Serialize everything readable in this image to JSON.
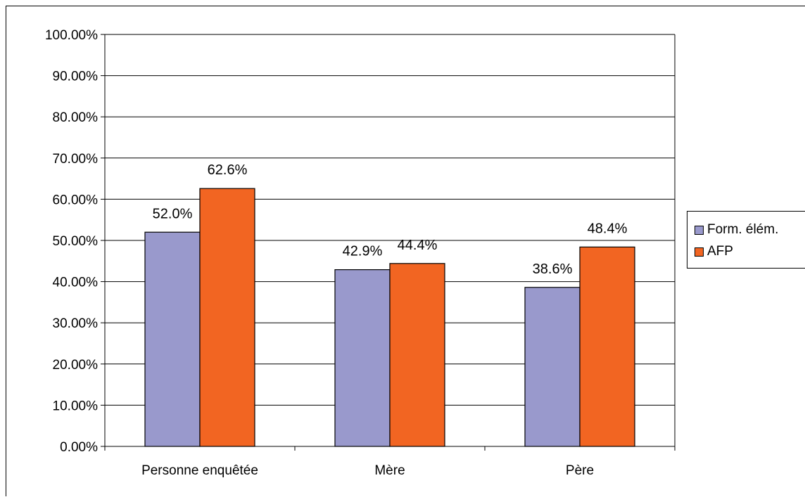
{
  "chart_data": {
    "type": "bar",
    "categories": [
      "Personne enquêtée",
      "Mère",
      "Père"
    ],
    "series": [
      {
        "name": "Form. élém.",
        "values": [
          52.0,
          42.9,
          38.6
        ],
        "color": "#9999CC",
        "labels": [
          "52.0%",
          "42.9%",
          "38.6%"
        ]
      },
      {
        "name": "AFP",
        "values": [
          62.6,
          44.4,
          48.4
        ],
        "color": "#F26522",
        "labels": [
          "62.6%",
          "44.4%",
          "48.4%"
        ]
      }
    ],
    "yticks": [
      "0.00%",
      "10.00%",
      "20.00%",
      "30.00%",
      "40.00%",
      "50.00%",
      "60.00%",
      "70.00%",
      "80.00%",
      "90.00%",
      "100.00%"
    ],
    "ylim": [
      0,
      100
    ],
    "grid": true,
    "legend_position": "right",
    "title": "",
    "xlabel": "",
    "ylabel": ""
  }
}
